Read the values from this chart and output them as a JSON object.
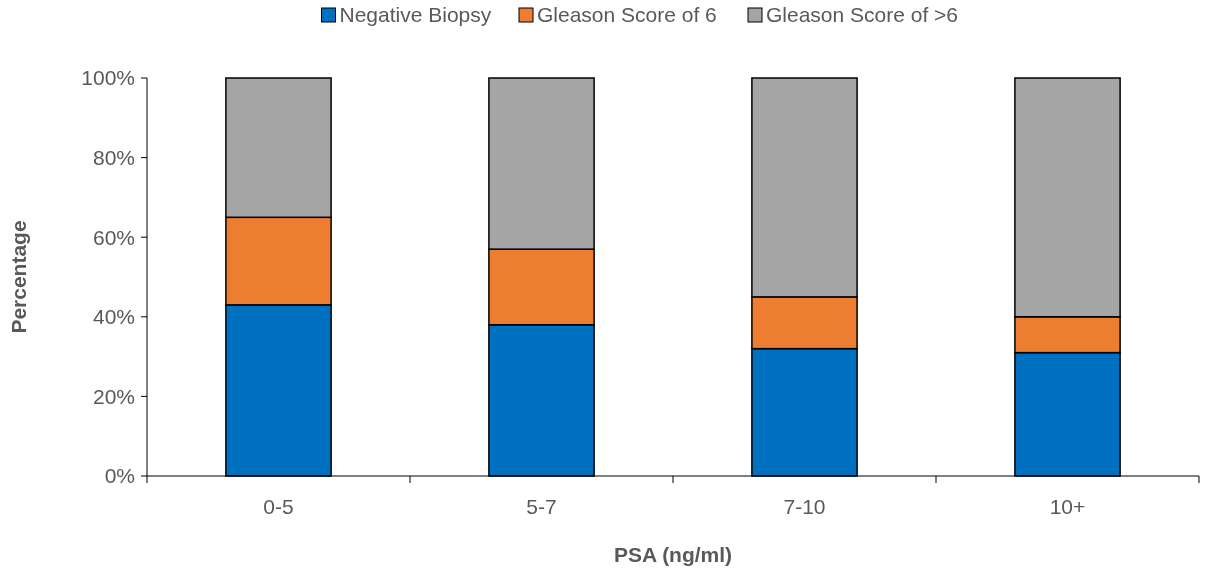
{
  "chart_data": {
    "type": "bar",
    "stacked": true,
    "xlabel": "PSA (ng/ml)",
    "ylabel": "Percentage",
    "categories": [
      "0-5",
      "5-7",
      "7-10",
      "10+"
    ],
    "series": [
      {
        "name": "Negative Biopsy",
        "color": "#0070c0",
        "values": [
          43,
          38,
          32,
          31
        ]
      },
      {
        "name": "Gleason Score of 6",
        "color": "#ed7d31",
        "values": [
          22,
          19,
          13,
          9
        ]
      },
      {
        "name": "Gleason Score of >6",
        "color": "#a5a5a5",
        "values": [
          35,
          43,
          55,
          60
        ]
      }
    ],
    "ylim": [
      0,
      100
    ],
    "yticks": [
      {
        "value": 0,
        "label": "0%"
      },
      {
        "value": 20,
        "label": "20%"
      },
      {
        "value": 40,
        "label": "40%"
      },
      {
        "value": 60,
        "label": "60%"
      },
      {
        "value": 80,
        "label": "80%"
      },
      {
        "value": 100,
        "label": "100%"
      }
    ],
    "grid": false,
    "legend": "top"
  }
}
